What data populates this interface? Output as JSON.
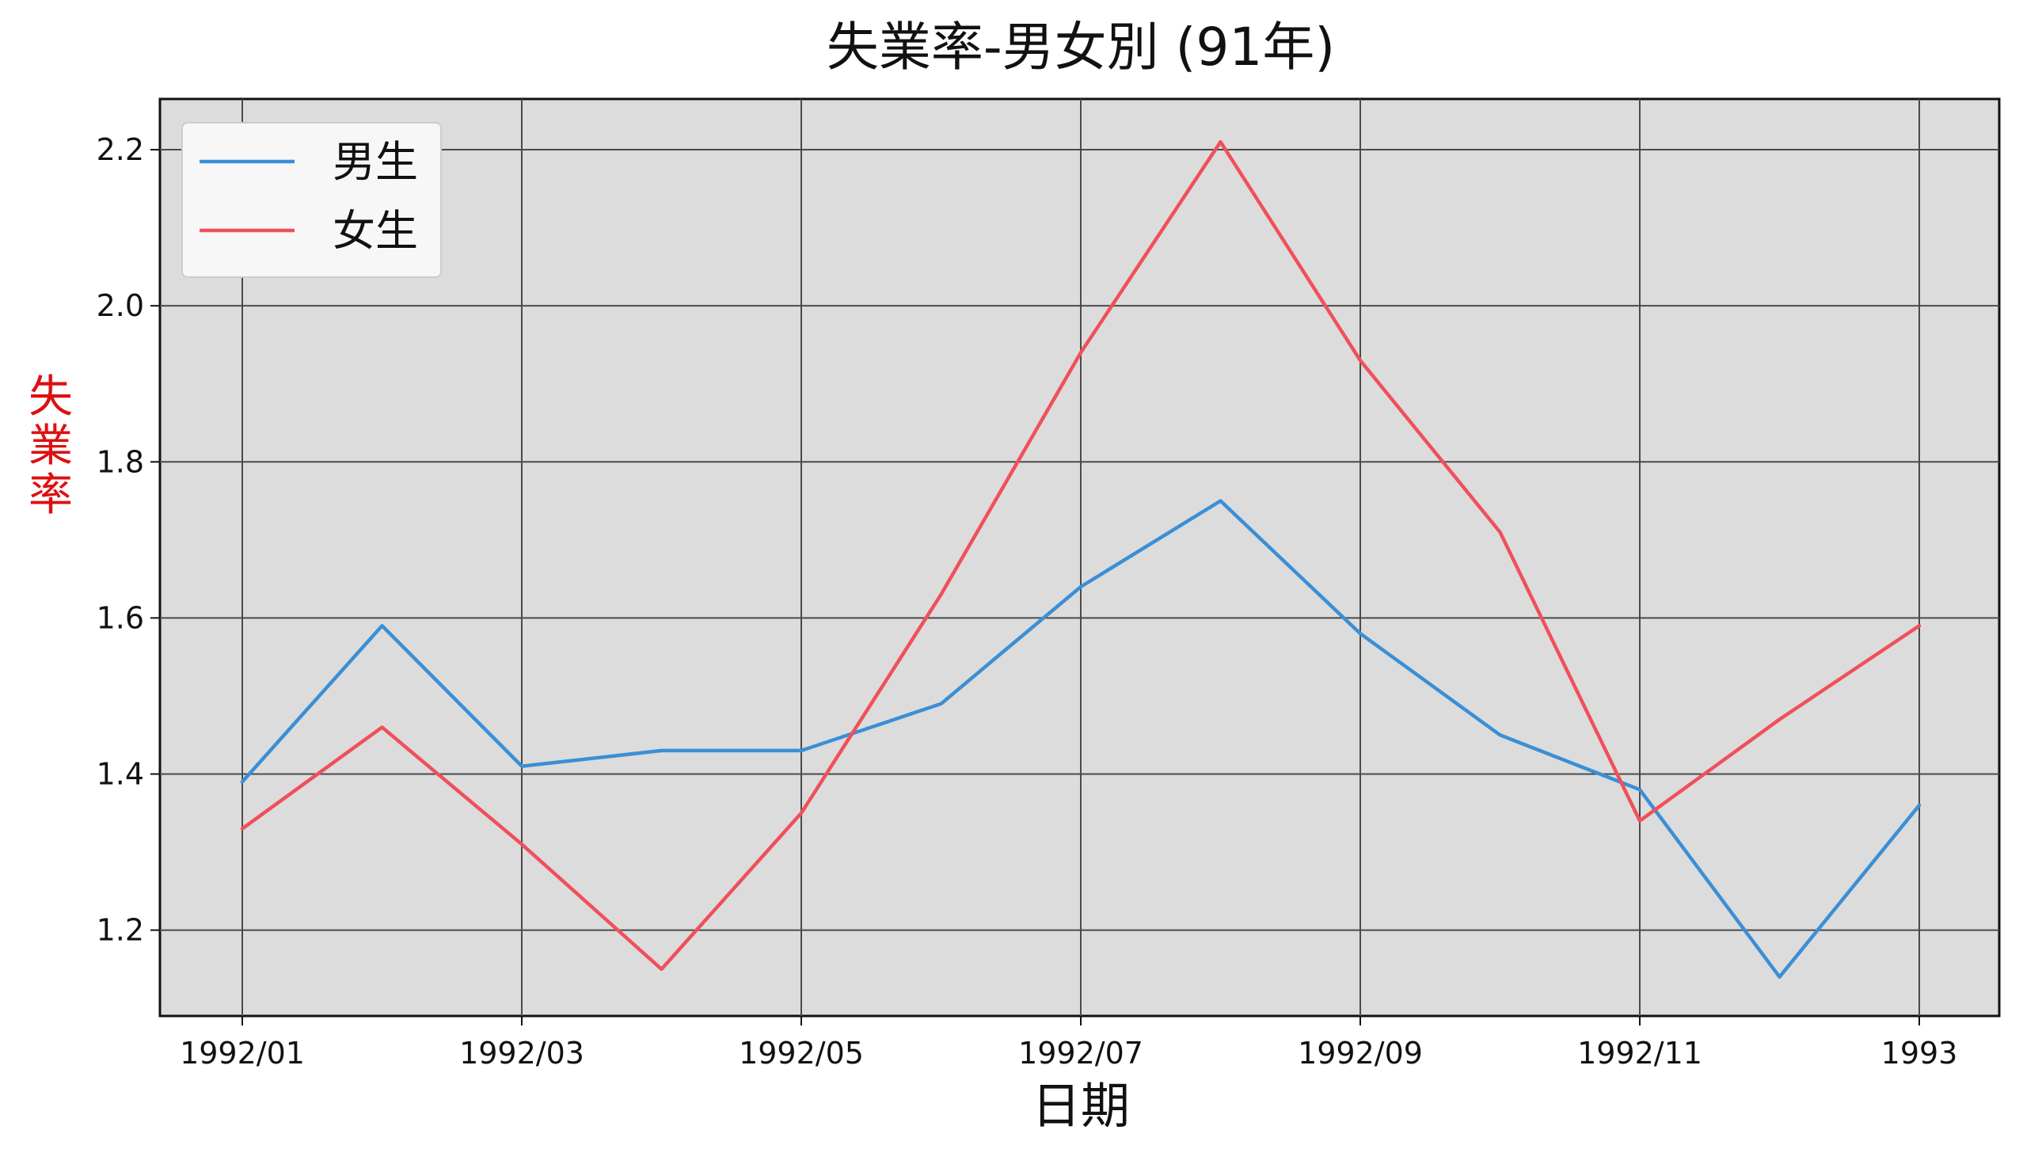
{
  "chart_data": {
    "type": "line",
    "title": "失業率-男女別 (91年)",
    "xlabel": "日期",
    "ylabel": "失業率",
    "ylabel_color": "#dd1111",
    "background_color": "#dcdcdc",
    "grid": true,
    "grid_color": "#4a4a4a",
    "legend_position": "upper-left",
    "x": [
      "1992/01",
      "1992/02",
      "1992/03",
      "1992/04",
      "1992/05",
      "1992/06",
      "1992/07",
      "1992/08",
      "1992/09",
      "1992/10",
      "1992/11",
      "1992/12",
      "1993/01"
    ],
    "x_tick_labels": [
      "1992/01",
      "1992/03",
      "1992/05",
      "1992/07",
      "1992/09",
      "1992/11",
      "1993"
    ],
    "ylim": [
      1.09,
      2.265
    ],
    "y_ticks": [
      "1.2",
      "1.4",
      "1.6",
      "1.8",
      "2.0",
      "2.2"
    ],
    "series": [
      {
        "name": "男生",
        "color": "#3a8fd6",
        "values": [
          1.39,
          1.59,
          1.41,
          1.43,
          1.43,
          1.49,
          1.64,
          1.75,
          1.58,
          1.45,
          1.38,
          1.14,
          1.36
        ]
      },
      {
        "name": "女生",
        "color": "#f0505a",
        "values": [
          1.33,
          1.46,
          1.31,
          1.15,
          1.35,
          1.63,
          1.94,
          2.21,
          1.93,
          1.71,
          1.34,
          1.47,
          1.59
        ]
      }
    ]
  }
}
